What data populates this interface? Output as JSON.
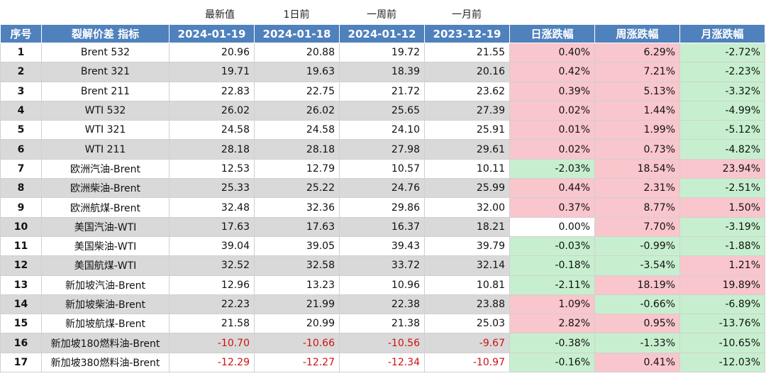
{
  "top_labels": [
    "最新值",
    "1日前",
    "一周前",
    "一月前"
  ],
  "table": {
    "header": [
      "序号",
      "裂解价差 指标",
      "2024-01-19",
      "2024-01-18",
      "2024-01-12",
      "2023-12-19",
      "日涨跌幅",
      "周涨跌幅",
      "月涨跌幅"
    ],
    "rows": [
      [
        "1",
        "Brent 532",
        "20.96",
        "20.88",
        "19.72",
        "21.55",
        "0.40%",
        "6.29%",
        "-2.72%"
      ],
      [
        "2",
        "Brent 321",
        "19.71",
        "19.63",
        "18.39",
        "20.16",
        "0.42%",
        "7.21%",
        "-2.23%"
      ],
      [
        "3",
        "Brent 211",
        "22.83",
        "22.75",
        "21.72",
        "23.62",
        "0.39%",
        "5.13%",
        "-3.32%"
      ],
      [
        "4",
        "WTI 532",
        "26.02",
        "26.02",
        "25.65",
        "27.39",
        "0.02%",
        "1.44%",
        "-4.99%"
      ],
      [
        "5",
        "WTI 321",
        "24.58",
        "24.58",
        "24.10",
        "25.91",
        "0.01%",
        "1.99%",
        "-5.12%"
      ],
      [
        "6",
        "WTI 211",
        "28.18",
        "28.18",
        "27.98",
        "29.61",
        "0.02%",
        "0.73%",
        "-4.82%"
      ],
      [
        "7",
        "欧洲汽油-Brent",
        "12.53",
        "12.79",
        "10.57",
        "10.11",
        "-2.03%",
        "18.54%",
        "23.94%"
      ],
      [
        "8",
        "欧洲柴油-Brent",
        "25.33",
        "25.22",
        "24.76",
        "25.99",
        "0.44%",
        "2.31%",
        "-2.51%"
      ],
      [
        "9",
        "欧洲航煤-Brent",
        "32.48",
        "32.36",
        "29.86",
        "32.00",
        "0.37%",
        "8.77%",
        "1.50%"
      ],
      [
        "10",
        "美国汽油-WTI",
        "17.63",
        "17.63",
        "16.37",
        "18.21",
        "0.00%",
        "7.70%",
        "-3.19%"
      ],
      [
        "11",
        "美国柴油-WTI",
        "39.04",
        "39.05",
        "39.43",
        "39.79",
        "-0.03%",
        "-0.99%",
        "-1.88%"
      ],
      [
        "12",
        "美国航煤-WTI",
        "32.52",
        "32.58",
        "33.72",
        "32.14",
        "-0.18%",
        "-3.54%",
        "1.21%"
      ],
      [
        "13",
        "新加坡汽油-Brent",
        "12.96",
        "13.23",
        "10.96",
        "10.81",
        "-2.11%",
        "18.19%",
        "19.89%"
      ],
      [
        "14",
        "新加坡柴油-Brent",
        "22.23",
        "21.99",
        "22.38",
        "23.88",
        "1.09%",
        "-0.66%",
        "-6.89%"
      ],
      [
        "15",
        "新加坡航煤-Brent",
        "21.58",
        "20.99",
        "21.38",
        "25.03",
        "2.82%",
        "0.95%",
        "-13.76%"
      ],
      [
        "16",
        "新加坡180燃料油-Brent",
        "-10.70",
        "-10.66",
        "-10.56",
        "-9.67",
        "-0.38%",
        "-1.33%",
        "-10.65%"
      ],
      [
        "17",
        "新加坡380燃料油-Brent",
        "-12.29",
        "-12.27",
        "-12.34",
        "-10.97",
        "-0.16%",
        "0.41%",
        "-12.03%"
      ]
    ]
  }
}
